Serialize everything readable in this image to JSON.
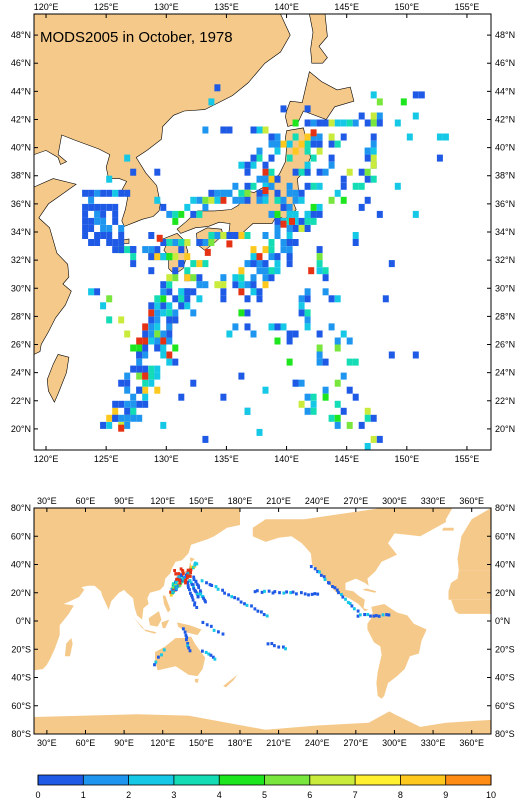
{
  "title": "MODS2005 in October, 1978",
  "colors": {
    "land": "#F5C98A",
    "ocean": "#FFFFFF",
    "frame": "#000000"
  },
  "top_map": {
    "lon_range": [
      119,
      157
    ],
    "lat_range": [
      18.5,
      49.5
    ],
    "lon_ticks": [
      "120°E",
      "125°E",
      "130°E",
      "135°E",
      "140°E",
      "145°E",
      "150°E",
      "155°E"
    ],
    "lon_tick_values": [
      120,
      125,
      130,
      135,
      140,
      145,
      150,
      155
    ],
    "lat_ticks": [
      "20°N",
      "22°N",
      "24°N",
      "26°N",
      "28°N",
      "30°N",
      "32°N",
      "34°N",
      "36°N",
      "38°N",
      "40°N",
      "42°N",
      "44°N",
      "46°N",
      "48°N"
    ],
    "lat_tick_values": [
      20,
      22,
      24,
      26,
      28,
      30,
      32,
      34,
      36,
      38,
      40,
      42,
      44,
      46,
      48
    ]
  },
  "bottom_map": {
    "lon_range": [
      20,
      375
    ],
    "lat_range": [
      -80,
      80
    ],
    "lon_ticks": [
      "30°E",
      "60°E",
      "90°E",
      "120°E",
      "150°E",
      "180°E",
      "210°E",
      "240°E",
      "270°E",
      "300°E",
      "330°E",
      "360°E"
    ],
    "lon_tick_values": [
      30,
      60,
      90,
      120,
      150,
      180,
      210,
      240,
      270,
      300,
      330,
      360
    ],
    "lat_ticks": [
      "80°S",
      "60°S",
      "40°S",
      "20°S",
      "0°N",
      "20°N",
      "40°N",
      "60°N",
      "80°N"
    ],
    "lat_tick_values": [
      -80,
      -60,
      -40,
      -20,
      0,
      20,
      40,
      60,
      80
    ]
  },
  "colorbar": {
    "labels": [
      "0",
      "1",
      "2",
      "3",
      "4",
      "5",
      "6",
      "7",
      "8",
      "9",
      "10"
    ],
    "colors": [
      "#1E5AE6",
      "#1E96F0",
      "#14C8E6",
      "#14DCB4",
      "#1EE61E",
      "#78E63C",
      "#C8EB3C",
      "#FFF032",
      "#FFC81E",
      "#FF8C14",
      "#E63214"
    ]
  }
}
